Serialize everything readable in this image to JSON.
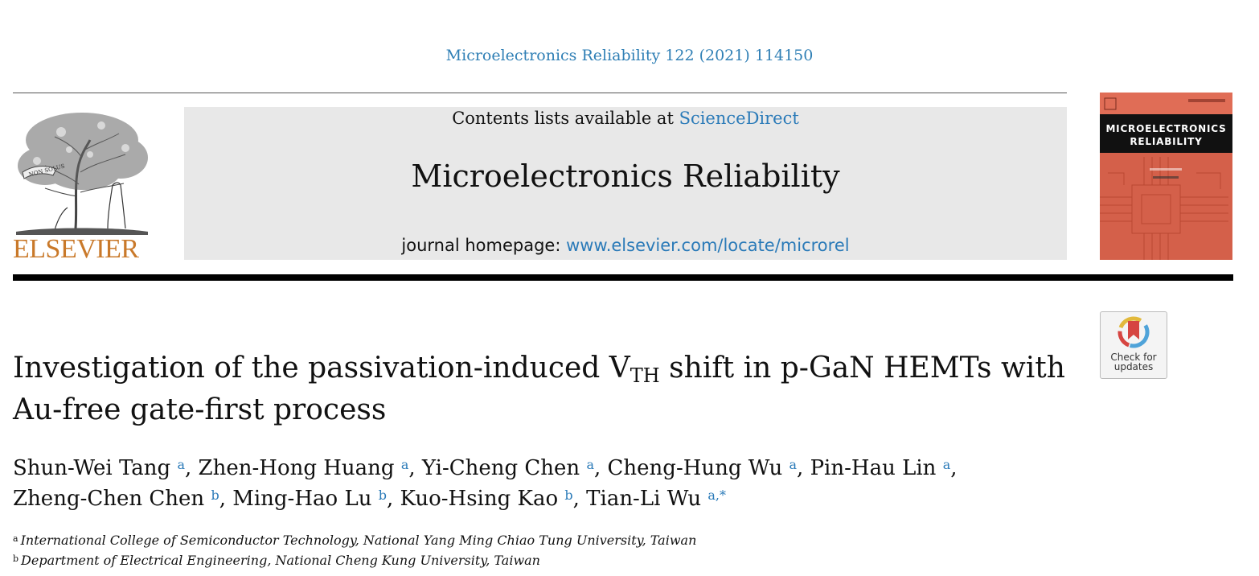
{
  "header": {
    "citation": "Microelectronics Reliability 122 (2021) 114150",
    "contents_prefix": "Contents lists available at ",
    "contents_link": "ScienceDirect",
    "journal_title": "Microelectronics Reliability",
    "homepage_prefix": "journal homepage: ",
    "homepage_link": "www.elsevier.com/locate/microrel",
    "publisher_logo_text": "ELSEVIER",
    "logo_motto": "NON SOLUS",
    "cover_title_line1": "MICROELECTRONICS",
    "cover_title_line2": "RELIABILITY",
    "check_updates_line1": "Check for",
    "check_updates_line2": "updates"
  },
  "article": {
    "title_part1": "Investigation of the passivation-induced V",
    "title_sub": "TH",
    "title_part2": " shift in p-GaN HEMTs with",
    "title_line2": "Au-free gate-first process",
    "authors": [
      {
        "name": "Shun-Wei Tang",
        "aff": "a",
        "sep": ", "
      },
      {
        "name": "Zhen-Hong Huang",
        "aff": "a",
        "sep": ", "
      },
      {
        "name": "Yi-Cheng Chen",
        "aff": "a",
        "sep": ", "
      },
      {
        "name": "Cheng-Hung Wu",
        "aff": "a",
        "sep": ", "
      },
      {
        "name": "Pin-Hau Lin",
        "aff": "a",
        "sep": ","
      },
      {
        "name": "Zheng-Chen Chen",
        "aff": "b",
        "sep": ", "
      },
      {
        "name": "Ming-Hao Lu",
        "aff": "b",
        "sep": ", "
      },
      {
        "name": "Kuo-Hsing Kao",
        "aff": "b",
        "sep": ", "
      },
      {
        "name": "Tian-Li Wu",
        "aff": "a,*",
        "sep": ""
      }
    ],
    "affiliations": [
      {
        "mark": "a",
        "text": "International College of Semiconductor Technology, National Yang Ming Chiao Tung University, Taiwan"
      },
      {
        "mark": "b",
        "text": "Department of Electrical Engineering, National Cheng Kung University, Taiwan"
      }
    ]
  },
  "colors": {
    "link": "#2a7ab8",
    "elsevier_orange": "#c9792a",
    "masthead_bg": "#e8e8e8",
    "cover_red": "#d4604a"
  }
}
